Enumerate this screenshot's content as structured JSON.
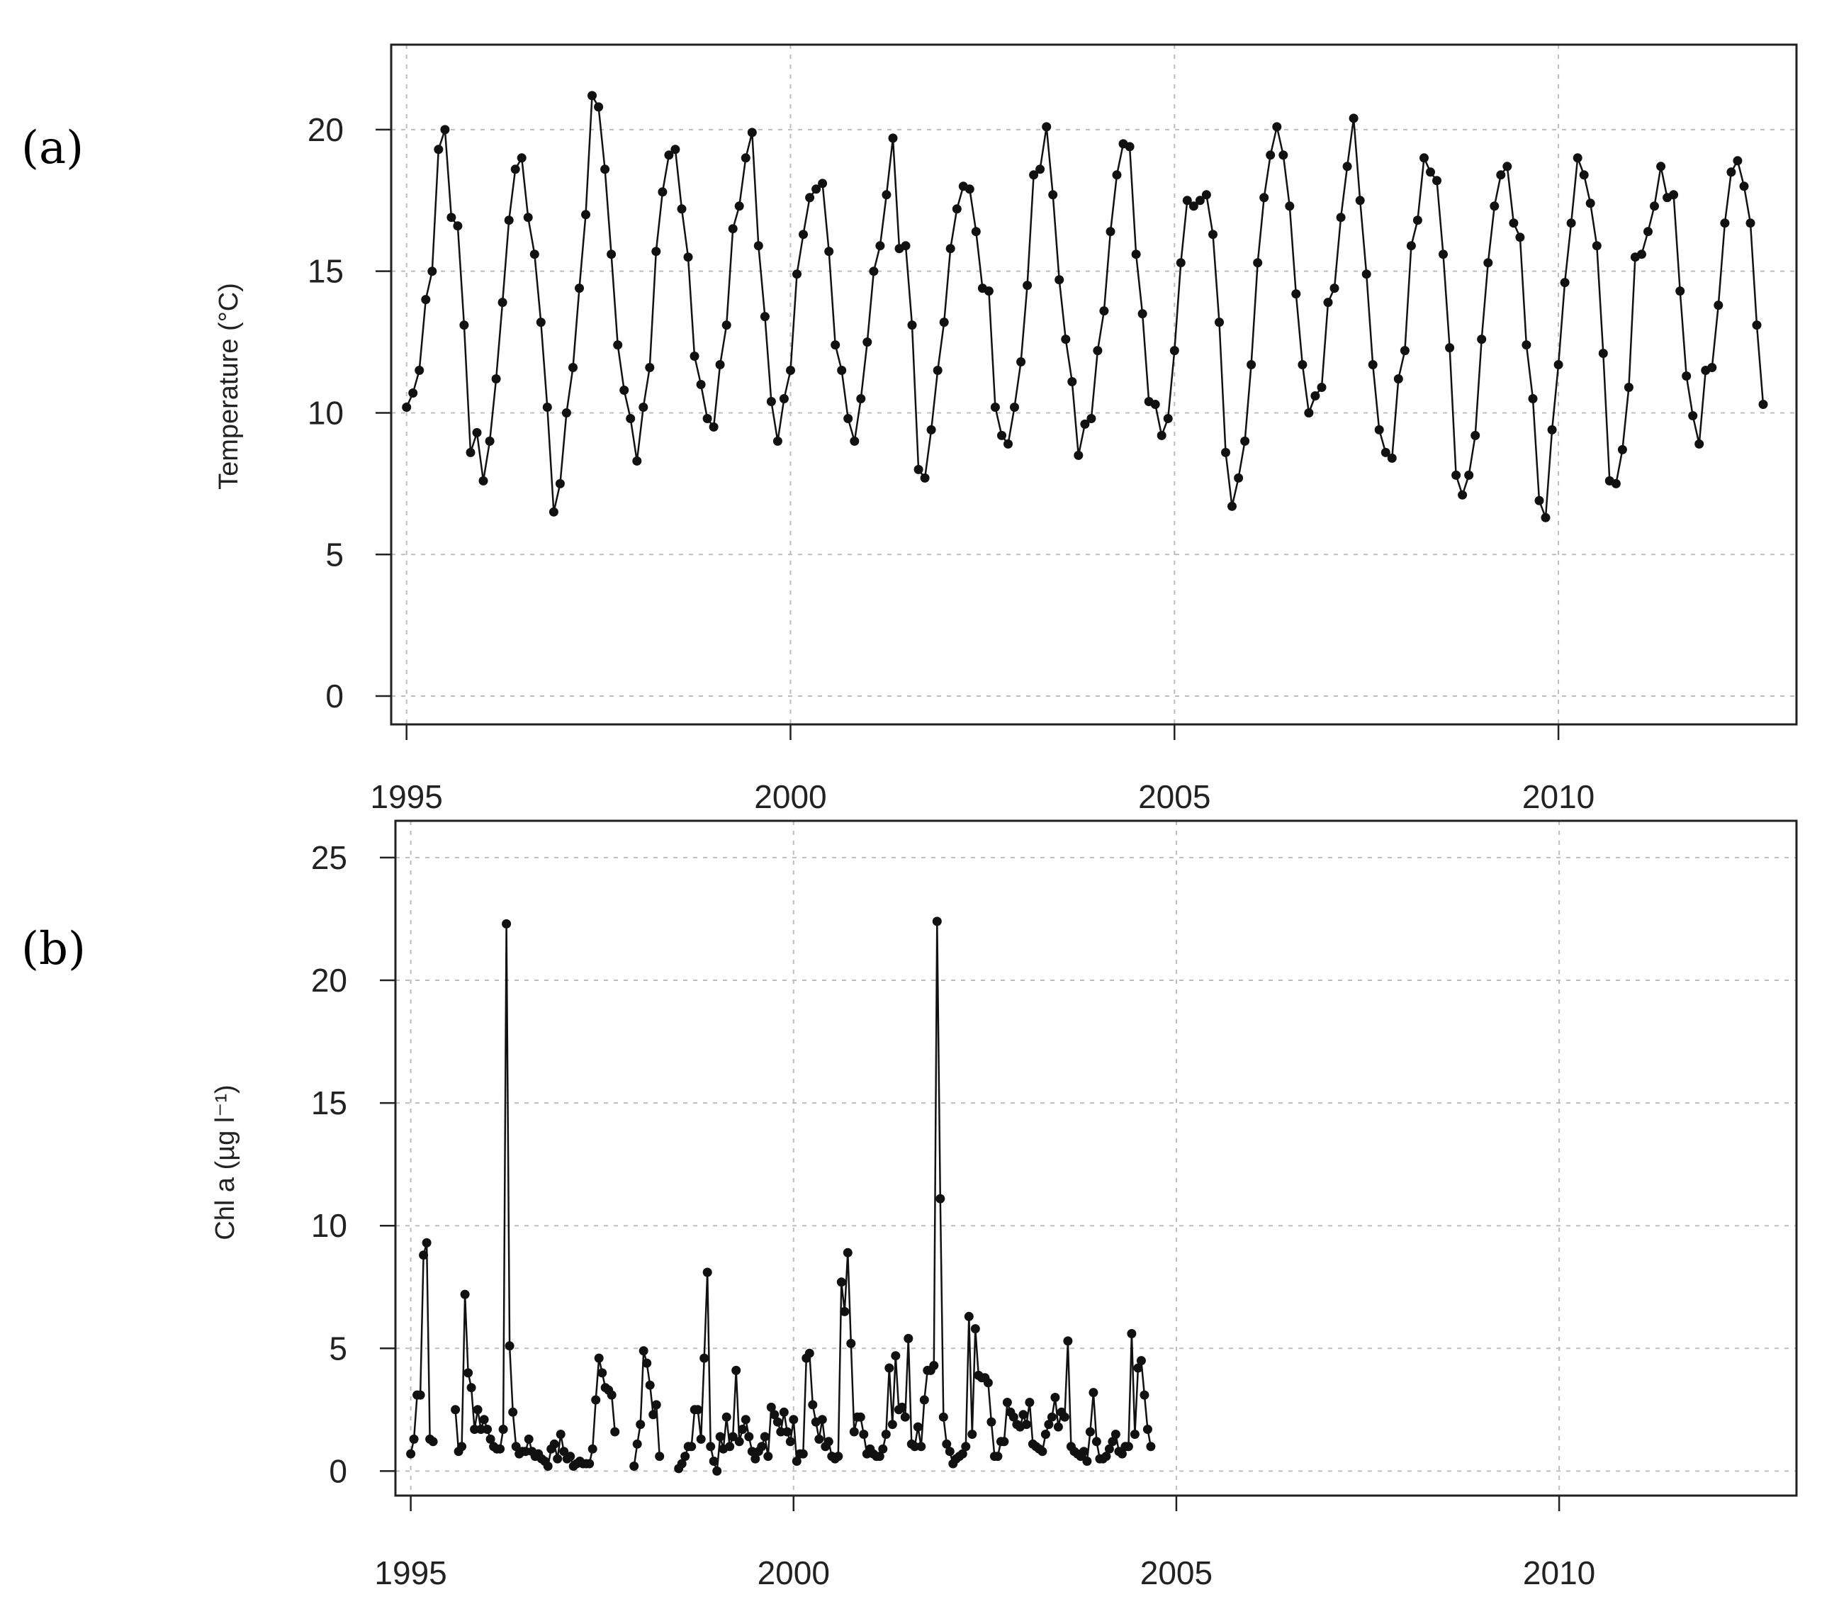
{
  "chart_data": [
    {
      "type": "line",
      "panel_label": "(a)",
      "ylabel": "Temperature (°C)",
      "xlim": [
        1994.8,
        2013.1
      ],
      "ylim": [
        -1,
        23
      ],
      "x_ticks": [
        1995,
        2000,
        2005,
        2010
      ],
      "y_ticks": [
        0,
        5,
        10,
        15,
        20
      ],
      "grid": true,
      "sampling": "monthly, starting 1995-01",
      "series": [
        {
          "values": [
            10.2,
            10.7,
            11.5,
            14.0,
            15.0,
            19.3,
            20.0,
            16.9,
            16.6,
            13.1,
            8.6,
            9.3,
            7.6,
            9.0,
            11.2,
            13.9,
            16.8,
            18.6,
            19.0,
            16.9,
            15.6,
            13.2,
            10.2,
            6.5,
            7.5,
            10.0,
            11.6,
            14.4,
            17.0,
            21.2,
            20.8,
            18.6,
            15.6,
            12.4,
            10.8,
            9.8,
            8.3,
            10.2,
            11.6,
            15.7,
            17.8,
            19.1,
            19.3,
            17.2,
            15.5,
            12.0,
            11.0,
            9.8,
            9.5,
            11.7,
            13.1,
            16.5,
            17.3,
            19.0,
            19.9,
            15.9,
            13.4,
            10.4,
            9.0,
            10.5,
            11.5,
            14.9,
            16.3,
            17.6,
            17.9,
            18.1,
            15.7,
            12.4,
            11.5,
            9.8,
            9.0,
            10.5,
            12.5,
            15.0,
            15.9,
            17.7,
            19.7,
            15.8,
            15.9,
            13.1,
            8.0,
            7.7,
            9.4,
            11.5,
            13.2,
            15.8,
            17.2,
            18.0,
            17.9,
            16.4,
            14.4,
            14.3,
            10.2,
            9.2,
            8.9,
            10.2,
            11.8,
            14.5,
            18.4,
            18.6,
            20.1,
            17.7,
            14.7,
            12.6,
            11.1,
            8.5,
            9.6,
            9.8,
            12.2,
            13.6,
            16.4,
            18.4,
            19.5,
            19.4,
            15.6,
            13.5,
            10.4,
            10.3,
            9.2,
            9.8,
            12.2,
            15.3,
            17.5,
            17.3,
            17.5,
            17.7,
            16.3,
            13.2,
            8.6,
            6.7,
            7.7,
            9.0,
            11.7,
            15.3,
            17.6,
            19.1,
            20.1,
            19.1,
            17.3,
            14.2,
            11.7,
            10.0,
            10.6,
            10.9,
            13.9,
            14.4,
            16.9,
            18.7,
            20.4,
            17.5,
            14.9,
            11.7,
            9.4,
            8.6,
            8.4,
            11.2,
            12.2,
            15.9,
            16.8,
            19.0,
            18.5,
            18.2,
            15.6,
            12.3,
            7.8,
            7.1,
            7.8,
            9.2,
            12.6,
            15.3,
            17.3,
            18.4,
            18.7,
            16.7,
            16.2,
            12.4,
            10.5,
            6.9,
            6.3,
            9.4,
            11.7,
            14.6,
            16.7,
            19.0,
            18.4,
            17.4,
            15.9,
            12.1,
            7.6,
            7.5,
            8.7,
            10.9,
            15.5,
            15.6,
            16.4,
            17.3,
            18.7,
            17.6,
            17.7,
            14.3,
            11.3,
            9.9,
            8.9,
            11.5,
            11.6,
            13.8,
            16.7,
            18.5,
            18.9,
            18.0,
            16.7,
            13.1,
            10.3
          ]
        }
      ]
    },
    {
      "type": "line",
      "panel_label": "(b)",
      "ylabel": "Chl a (µg l⁻¹)",
      "xlim": [
        1994.8,
        2013.1
      ],
      "ylim": [
        -1,
        26.5
      ],
      "x_ticks": [
        1995,
        2000,
        2005,
        2010
      ],
      "y_ticks": [
        0,
        5,
        10,
        15,
        20,
        25
      ],
      "grid": true,
      "sampling": "~twice monthly, starting 1995-01 (null = gap)",
      "series": [
        {
          "values": [
            0.7,
            1.3,
            3.1,
            3.1,
            8.8,
            9.3,
            1.3,
            1.2,
            null,
            null,
            null,
            null,
            null,
            null,
            2.5,
            0.8,
            1.0,
            7.2,
            4.0,
            3.4,
            1.7,
            2.5,
            1.7,
            2.1,
            1.7,
            1.3,
            1.0,
            0.9,
            0.9,
            1.7,
            22.3,
            5.1,
            2.4,
            1.0,
            0.7,
            0.8,
            0.8,
            1.3,
            0.8,
            0.6,
            0.7,
            0.5,
            0.4,
            0.2,
            0.9,
            1.1,
            0.5,
            1.5,
            0.8,
            0.5,
            0.6,
            0.2,
            0.3,
            0.4,
            0.3,
            0.3,
            0.3,
            0.9,
            2.9,
            4.6,
            4.0,
            3.4,
            3.3,
            3.1,
            1.6,
            null,
            null,
            null,
            null,
            null,
            0.2,
            1.1,
            1.9,
            4.9,
            4.4,
            3.5,
            2.3,
            2.7,
            0.6,
            null,
            null,
            null,
            null,
            null,
            0.1,
            0.3,
            0.6,
            1.0,
            1.0,
            2.5,
            2.5,
            1.3,
            4.6,
            8.1,
            1.0,
            0.4,
            0.0,
            1.4,
            0.9,
            2.2,
            1.0,
            1.4,
            4.1,
            1.2,
            1.7,
            2.1,
            1.4,
            0.8,
            0.5,
            0.8,
            1.0,
            1.4,
            0.6,
            2.6,
            2.3,
            2.0,
            1.6,
            2.4,
            1.6,
            1.2,
            2.1,
            0.4,
            0.7,
            0.7,
            4.6,
            4.8,
            2.7,
            2.0,
            1.3,
            2.1,
            1.0,
            1.2,
            0.6,
            0.5,
            0.6,
            7.7,
            6.5,
            8.9,
            5.2,
            1.6,
            2.2,
            2.2,
            1.5,
            0.7,
            0.9,
            0.7,
            0.6,
            0.6,
            0.9,
            1.5,
            4.2,
            1.9,
            4.7,
            2.5,
            2.6,
            2.2,
            5.4,
            1.1,
            1.0,
            1.8,
            1.0,
            2.9,
            4.1,
            4.1,
            4.3,
            22.4,
            11.1,
            2.2,
            1.1,
            0.8,
            0.3,
            0.5,
            0.6,
            0.7,
            1.0,
            6.3,
            1.5,
            5.8,
            3.9,
            3.8,
            3.8,
            3.6,
            2.0,
            0.6,
            0.6,
            1.2,
            1.2,
            2.8,
            2.4,
            2.2,
            1.9,
            1.8,
            2.3,
            1.9,
            2.8,
            1.1,
            1.0,
            0.9,
            0.8,
            1.5,
            1.9,
            2.2,
            3.0,
            1.8,
            2.4,
            2.2,
            5.3,
            1.0,
            0.8,
            0.7,
            0.6,
            0.8,
            0.4,
            1.6,
            3.2,
            1.2,
            0.5,
            0.5,
            0.6,
            0.9,
            1.2,
            1.5,
            0.8,
            0.7,
            1.0,
            1.0,
            5.6,
            1.5,
            4.2,
            4.5,
            3.1,
            1.7,
            1.0
          ]
        }
      ]
    }
  ]
}
